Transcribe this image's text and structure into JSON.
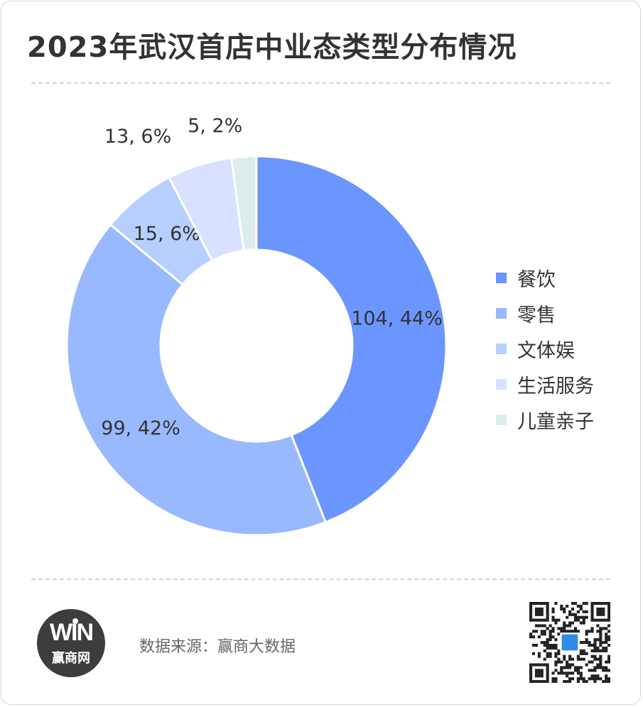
{
  "title": "2023年武汉首店中业态类型分布情况",
  "source_text": "数据来源：赢商大数据",
  "logo": {
    "mark": "WIN",
    "text": "赢商网"
  },
  "qr_icon": "qr-code-icon",
  "colors": {
    "title": "#333333",
    "divider": "#d4d4d4",
    "logo_bg": "#3d3d3d"
  },
  "chart_data": {
    "type": "pie",
    "subtype": "donut",
    "title": "2023年武汉首店中业态类型分布情况",
    "legend_position": "right",
    "series": [
      {
        "name": "餐饮",
        "value": 104,
        "label": "104, 44%",
        "color": "#6b95ff"
      },
      {
        "name": "零售",
        "value": 99,
        "label": "99, 42%",
        "color": "#99b9ff"
      },
      {
        "name": "文体娱",
        "value": 15,
        "label": "15, 6%",
        "color": "#b7cfff"
      },
      {
        "name": "生活服务",
        "value": 13,
        "label": "13, 6%",
        "color": "#d8e1ff"
      },
      {
        "name": "儿童亲子",
        "value": 5,
        "label": "5, 2%",
        "color": "#dbeeed"
      }
    ]
  }
}
